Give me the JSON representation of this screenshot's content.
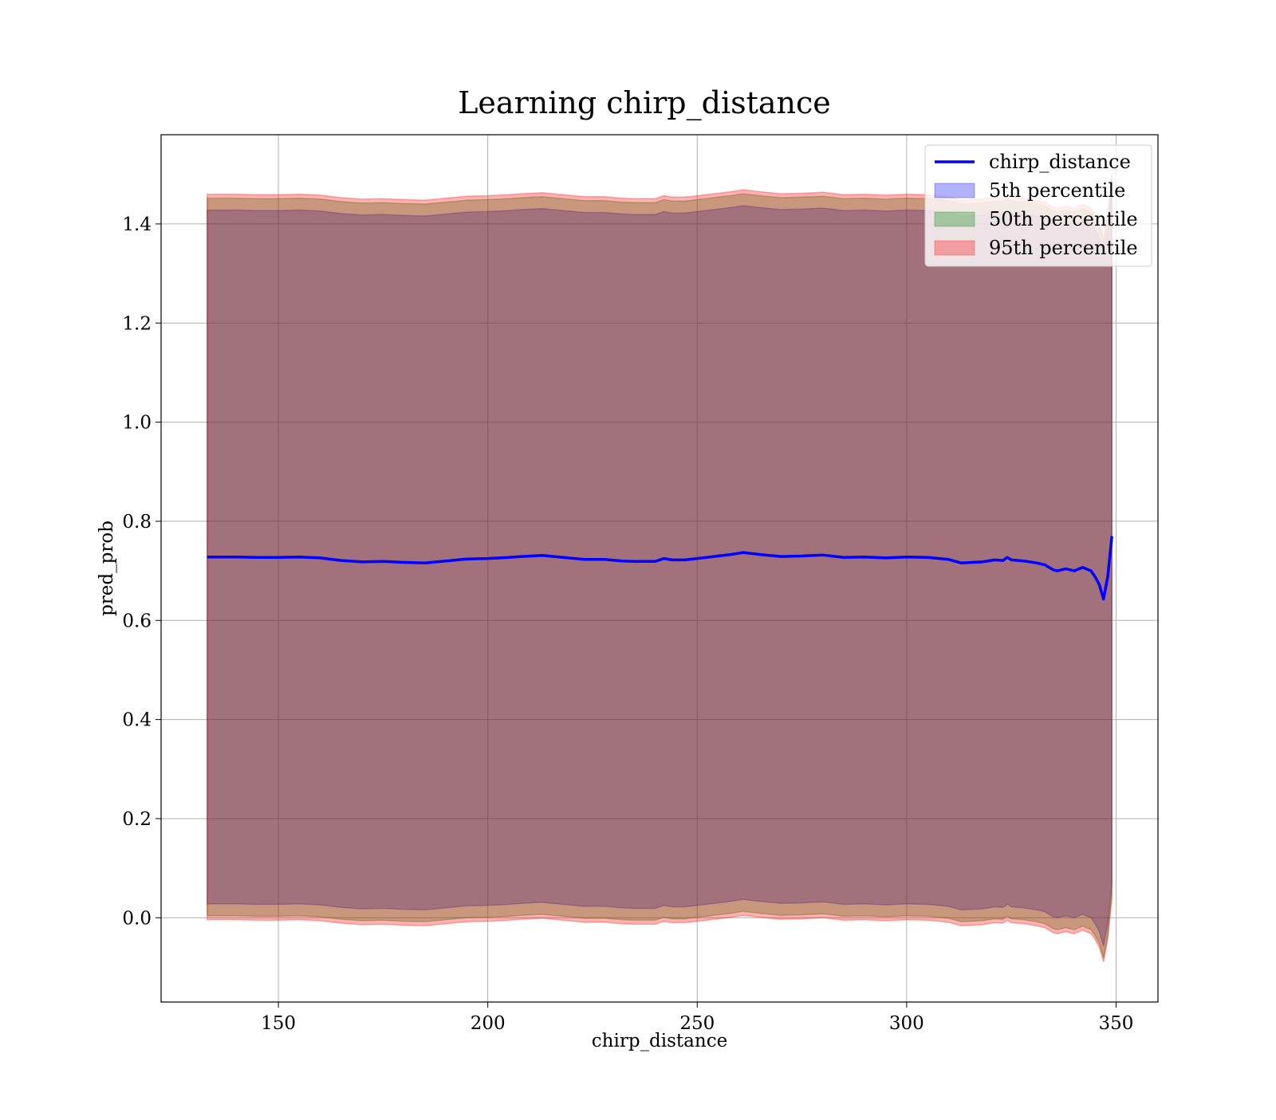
{
  "chart_data": {
    "type": "line",
    "title": "Learning chirp_distance",
    "xlabel": "chirp_distance",
    "ylabel": "pred_prob",
    "xlim": [
      122,
      360
    ],
    "ylim": [
      -0.17,
      1.58
    ],
    "xticks": [
      150,
      200,
      250,
      300,
      350
    ],
    "yticks": [
      0.0,
      0.2,
      0.4,
      0.6,
      0.8,
      1.0,
      1.2,
      1.4
    ],
    "xtick_labels": [
      "150",
      "200",
      "250",
      "300",
      "350"
    ],
    "ytick_labels": [
      "0.0",
      "0.2",
      "0.4",
      "0.6",
      "0.8",
      "1.0",
      "1.2",
      "1.4"
    ],
    "grid": true,
    "legend_position": "upper right",
    "colors": {
      "line": "#0000ff",
      "p5": "#0000ff",
      "p50": "#008000",
      "p95": "#ff0000",
      "grid": "#b0b0b0"
    },
    "x": [
      133,
      140,
      145,
      150,
      155,
      160,
      165,
      170,
      175,
      180,
      185,
      190,
      195,
      200,
      205,
      208,
      213,
      218,
      223,
      228,
      232,
      235,
      240,
      242,
      244,
      247,
      250,
      255,
      258,
      261,
      265,
      270,
      275,
      280,
      285,
      290,
      295,
      300,
      305,
      310,
      313,
      318,
      321,
      323,
      324,
      325,
      328,
      331,
      333,
      335,
      336,
      338,
      340,
      342,
      344,
      345,
      346,
      347,
      348,
      349
    ],
    "series": [
      {
        "name": "chirp_distance",
        "kind": "line",
        "values": [
          0.728,
          0.728,
          0.727,
          0.727,
          0.728,
          0.726,
          0.721,
          0.718,
          0.719,
          0.717,
          0.716,
          0.72,
          0.724,
          0.725,
          0.727,
          0.729,
          0.731,
          0.727,
          0.723,
          0.723,
          0.72,
          0.719,
          0.719,
          0.725,
          0.722,
          0.722,
          0.725,
          0.73,
          0.733,
          0.737,
          0.733,
          0.729,
          0.73,
          0.732,
          0.727,
          0.728,
          0.726,
          0.728,
          0.727,
          0.723,
          0.716,
          0.718,
          0.722,
          0.721,
          0.727,
          0.722,
          0.72,
          0.716,
          0.712,
          0.702,
          0.7,
          0.704,
          0.7,
          0.707,
          0.7,
          0.688,
          0.672,
          0.643,
          0.688,
          0.77
        ]
      },
      {
        "name": "5th percentile",
        "kind": "band",
        "lower": [
          0.028,
          0.028,
          0.027,
          0.027,
          0.028,
          0.026,
          0.021,
          0.018,
          0.019,
          0.017,
          0.016,
          0.02,
          0.024,
          0.025,
          0.027,
          0.029,
          0.031,
          0.027,
          0.023,
          0.023,
          0.02,
          0.019,
          0.019,
          0.025,
          0.022,
          0.022,
          0.025,
          0.03,
          0.033,
          0.037,
          0.033,
          0.029,
          0.03,
          0.032,
          0.027,
          0.028,
          0.026,
          0.028,
          0.027,
          0.023,
          0.016,
          0.018,
          0.022,
          0.021,
          0.027,
          0.022,
          0.02,
          0.016,
          0.012,
          0.002,
          0.0,
          0.004,
          0.0,
          0.007,
          0.0,
          -0.012,
          -0.028,
          -0.057,
          -0.012,
          0.07
        ],
        "upper": [
          1.428,
          1.428,
          1.427,
          1.427,
          1.428,
          1.426,
          1.421,
          1.418,
          1.419,
          1.417,
          1.416,
          1.42,
          1.424,
          1.425,
          1.427,
          1.429,
          1.431,
          1.427,
          1.423,
          1.423,
          1.42,
          1.419,
          1.419,
          1.425,
          1.422,
          1.422,
          1.425,
          1.43,
          1.433,
          1.437,
          1.433,
          1.429,
          1.43,
          1.432,
          1.427,
          1.428,
          1.426,
          1.428,
          1.427,
          1.423,
          1.416,
          1.418,
          1.422,
          1.421,
          1.427,
          1.422,
          1.42,
          1.416,
          1.412,
          1.402,
          1.4,
          1.404,
          1.4,
          1.407,
          1.4,
          1.388,
          1.372,
          1.343,
          1.388,
          1.47
        ]
      },
      {
        "name": "50th percentile",
        "kind": "band",
        "lower": [
          0.004,
          0.004,
          0.003,
          0.003,
          0.004,
          0.002,
          -0.003,
          -0.006,
          -0.005,
          -0.007,
          -0.008,
          -0.004,
          0.0,
          0.001,
          0.003,
          0.005,
          0.007,
          0.003,
          -0.001,
          -0.001,
          -0.004,
          -0.005,
          -0.005,
          0.001,
          -0.002,
          -0.002,
          0.001,
          0.006,
          0.009,
          0.013,
          0.009,
          0.005,
          0.006,
          0.008,
          0.003,
          0.004,
          0.002,
          0.004,
          0.003,
          -0.001,
          -0.008,
          -0.006,
          -0.002,
          -0.003,
          0.003,
          -0.002,
          -0.004,
          -0.008,
          -0.012,
          -0.022,
          -0.024,
          -0.02,
          -0.024,
          -0.017,
          -0.024,
          -0.036,
          -0.052,
          -0.081,
          -0.036,
          0.046
        ],
        "upper": [
          1.452,
          1.452,
          1.451,
          1.451,
          1.452,
          1.45,
          1.445,
          1.442,
          1.443,
          1.441,
          1.44,
          1.444,
          1.448,
          1.449,
          1.451,
          1.453,
          1.455,
          1.451,
          1.447,
          1.447,
          1.444,
          1.443,
          1.443,
          1.449,
          1.446,
          1.446,
          1.449,
          1.454,
          1.457,
          1.461,
          1.457,
          1.453,
          1.454,
          1.456,
          1.451,
          1.452,
          1.45,
          1.452,
          1.451,
          1.447,
          1.44,
          1.442,
          1.446,
          1.445,
          1.451,
          1.446,
          1.444,
          1.44,
          1.436,
          1.426,
          1.424,
          1.428,
          1.424,
          1.431,
          1.424,
          1.412,
          1.396,
          1.367,
          1.412,
          1.494
        ]
      },
      {
        "name": "95th percentile",
        "kind": "band",
        "lower": [
          -0.004,
          -0.004,
          -0.005,
          -0.005,
          -0.004,
          -0.006,
          -0.011,
          -0.014,
          -0.013,
          -0.015,
          -0.016,
          -0.012,
          -0.008,
          -0.007,
          -0.005,
          -0.003,
          -0.001,
          -0.005,
          -0.009,
          -0.009,
          -0.012,
          -0.013,
          -0.013,
          -0.007,
          -0.01,
          -0.01,
          -0.007,
          -0.002,
          0.001,
          0.005,
          0.001,
          -0.003,
          -0.002,
          0.0,
          -0.005,
          -0.004,
          -0.006,
          -0.004,
          -0.005,
          -0.009,
          -0.016,
          -0.014,
          -0.01,
          -0.011,
          -0.005,
          -0.01,
          -0.012,
          -0.016,
          -0.02,
          -0.03,
          -0.032,
          -0.028,
          -0.032,
          -0.025,
          -0.032,
          -0.044,
          -0.06,
          -0.089,
          -0.044,
          0.038
        ],
        "upper": [
          1.46,
          1.46,
          1.459,
          1.459,
          1.46,
          1.458,
          1.453,
          1.45,
          1.451,
          1.449,
          1.448,
          1.452,
          1.456,
          1.457,
          1.459,
          1.461,
          1.463,
          1.459,
          1.455,
          1.455,
          1.452,
          1.451,
          1.451,
          1.457,
          1.454,
          1.454,
          1.457,
          1.462,
          1.465,
          1.469,
          1.465,
          1.461,
          1.462,
          1.464,
          1.459,
          1.46,
          1.458,
          1.46,
          1.459,
          1.455,
          1.448,
          1.45,
          1.454,
          1.453,
          1.459,
          1.454,
          1.452,
          1.448,
          1.444,
          1.434,
          1.432,
          1.436,
          1.432,
          1.439,
          1.432,
          1.42,
          1.404,
          1.375,
          1.42,
          1.502
        ]
      }
    ]
  }
}
